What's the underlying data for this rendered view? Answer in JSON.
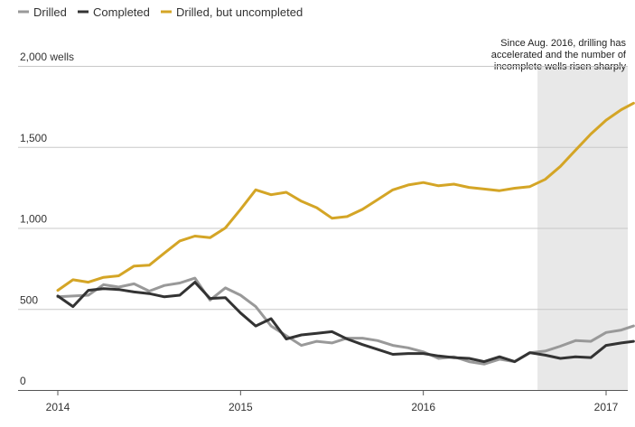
{
  "chart_data": {
    "type": "line",
    "title": "",
    "xlabel": "",
    "ylabel": "wells",
    "ylim": [
      0,
      2000
    ],
    "xlim": [
      2014.0,
      2017.15
    ],
    "y_ticks": [
      {
        "value": 0,
        "label": "0"
      },
      {
        "value": 500,
        "label": "500"
      },
      {
        "value": 1000,
        "label": "1,000"
      },
      {
        "value": 1500,
        "label": "1,500"
      },
      {
        "value": 2000,
        "label": "2,000 wells"
      }
    ],
    "x_ticks": [
      {
        "value": 2014,
        "label": "2014"
      },
      {
        "value": 2015,
        "label": "2015"
      },
      {
        "value": 2016,
        "label": "2016"
      },
      {
        "value": 2017,
        "label": "2017"
      }
    ],
    "grid": true,
    "legend_position": "top-left",
    "shaded_region": {
      "x_start": 2016.625,
      "x_end": 2017.15,
      "annotation": [
        "Since Aug. 2016, drilling has",
        "accelerated and the number of",
        "incomplete wells risen sharply"
      ]
    },
    "x": [
      2014.0,
      2014.083,
      2014.167,
      2014.25,
      2014.333,
      2014.417,
      2014.5,
      2014.583,
      2014.667,
      2014.75,
      2014.833,
      2014.917,
      2015.0,
      2015.083,
      2015.167,
      2015.25,
      2015.333,
      2015.417,
      2015.5,
      2015.583,
      2015.667,
      2015.75,
      2015.833,
      2015.917,
      2016.0,
      2016.083,
      2016.167,
      2016.25,
      2016.333,
      2016.417,
      2016.5,
      2016.583,
      2016.667,
      2016.75,
      2016.833,
      2016.917,
      2017.0,
      2017.083,
      2017.15
    ],
    "series": [
      {
        "name": "Drilled",
        "color": "#999999",
        "values": [
          575,
          580,
          585,
          650,
          635,
          655,
          610,
          645,
          660,
          690,
          555,
          630,
          585,
          515,
          395,
          335,
          275,
          300,
          290,
          320,
          320,
          305,
          275,
          260,
          235,
          195,
          205,
          175,
          160,
          190,
          175,
          230,
          240,
          270,
          305,
          300,
          355,
          370,
          395
        ]
      },
      {
        "name": "Completed",
        "color": "#333333",
        "values": [
          580,
          515,
          615,
          625,
          620,
          605,
          595,
          575,
          585,
          665,
          565,
          570,
          475,
          395,
          440,
          315,
          340,
          350,
          360,
          315,
          280,
          250,
          220,
          225,
          225,
          210,
          200,
          195,
          175,
          205,
          175,
          230,
          215,
          195,
          205,
          200,
          275,
          290,
          300
        ]
      },
      {
        "name": "Drilled, but uncompleted",
        "color": "#d4a526",
        "values": [
          615,
          680,
          665,
          695,
          705,
          765,
          770,
          845,
          920,
          950,
          940,
          1000,
          1115,
          1235,
          1205,
          1220,
          1165,
          1125,
          1060,
          1070,
          1115,
          1175,
          1235,
          1265,
          1280,
          1260,
          1270,
          1250,
          1240,
          1230,
          1245,
          1255,
          1300,
          1380,
          1480,
          1580,
          1665,
          1730,
          1770
        ]
      }
    ]
  }
}
